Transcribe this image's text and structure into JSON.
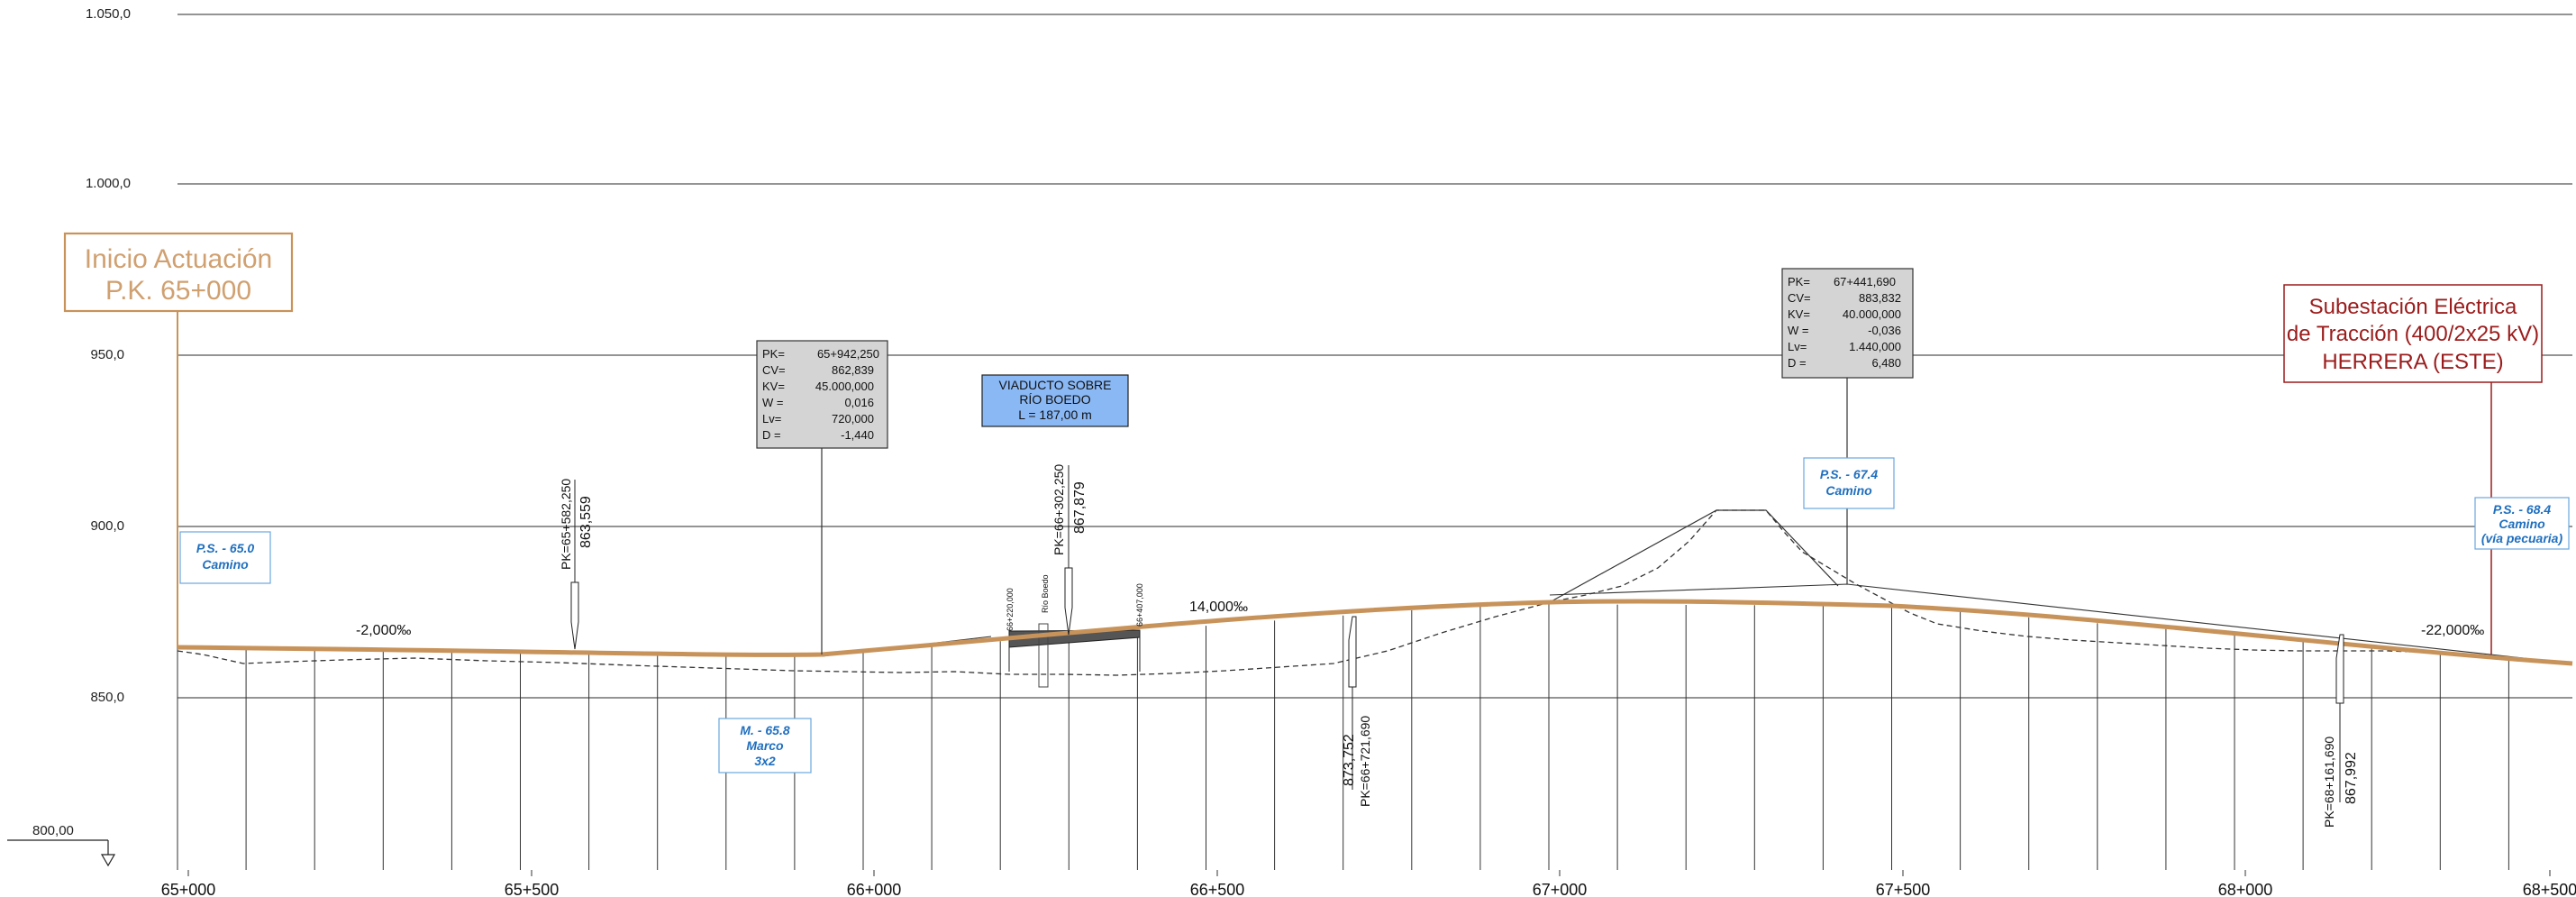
{
  "elevation_labels": [
    "1.050,0",
    "1.000,0",
    "950,0",
    "900,0",
    "850,0"
  ],
  "datum_label": "800,00",
  "pk_labels": [
    "65+000",
    "65+500",
    "66+000",
    "66+500",
    "67+000",
    "67+500",
    "68+000",
    "68+500"
  ],
  "grade_labels": [
    "-2,000‰",
    "14,000‰",
    "-22,000‰"
  ],
  "start_box": {
    "line1": "Inicio Actuación",
    "line2": "P.K. 65+000"
  },
  "substation_box": {
    "line1": "Subestación Eléctrica",
    "line2": "de Tracción (400/2x25 kV)",
    "line3": "HERRERA (ESTE)"
  },
  "viaduct_box": {
    "line1": "VIADUCTO SOBRE",
    "line2": "RÍO BOEDO",
    "line3": "L = 187,00 m"
  },
  "vc1": {
    "k1": "PK=",
    "v1": "65+942,250",
    "k2": "CV=",
    "v2": "862,839",
    "k3": "KV=",
    "v3": "45.000,000",
    "k4": "W =",
    "v4": "0,016",
    "k5": "Lv=",
    "v5": "720,000",
    "k6": "D =",
    "v6": "-1,440"
  },
  "vc2": {
    "k1": "PK=",
    "v1": "67+441,690",
    "k2": "CV=",
    "v2": "883,832",
    "k3": "KV=",
    "v3": "40.000,000",
    "k4": "W =",
    "v4": "-0,036",
    "k5": "Lv=",
    "v5": "1.440,000",
    "k6": "D =",
    "v6": "6,480"
  },
  "structures": {
    "ps650": {
      "line1": "P.S. - 65.0",
      "line2": "Camino"
    },
    "m658": {
      "line1": "M. - 65.8",
      "line2": "Marco",
      "line3": "3x2"
    },
    "ps674": {
      "line1": "P.S. - 67.4",
      "line2": "Camino"
    },
    "ps684": {
      "line1": "P.S. - 68.4",
      "line2": "Camino",
      "line3": "(vía pecuaria)"
    }
  },
  "markers": {
    "m1": {
      "pk": "PK=65+582,250",
      "elev": "863,559"
    },
    "m2": {
      "pk": "PK=66+302,250",
      "elev": "867,879"
    },
    "m3": {
      "pk": "PK=66+721,690",
      "elev": "873,752"
    },
    "m4": {
      "pk": "PK=68+161,690",
      "elev": "867,992"
    }
  },
  "viaduct_ticks": {
    "start": "66+220,000",
    "river": "Río Boedo",
    "end": "66+407,000"
  },
  "colors": {
    "rail": "#c8935a",
    "start_text": "#d0a070",
    "substation": "#9b1c1c",
    "structure_text": "#1f6fbf",
    "structure_border": "#6aa6de",
    "viaduct_fill": "#8ab8f5",
    "vc_fill": "#d4d4d4",
    "grid": "#333333"
  }
}
